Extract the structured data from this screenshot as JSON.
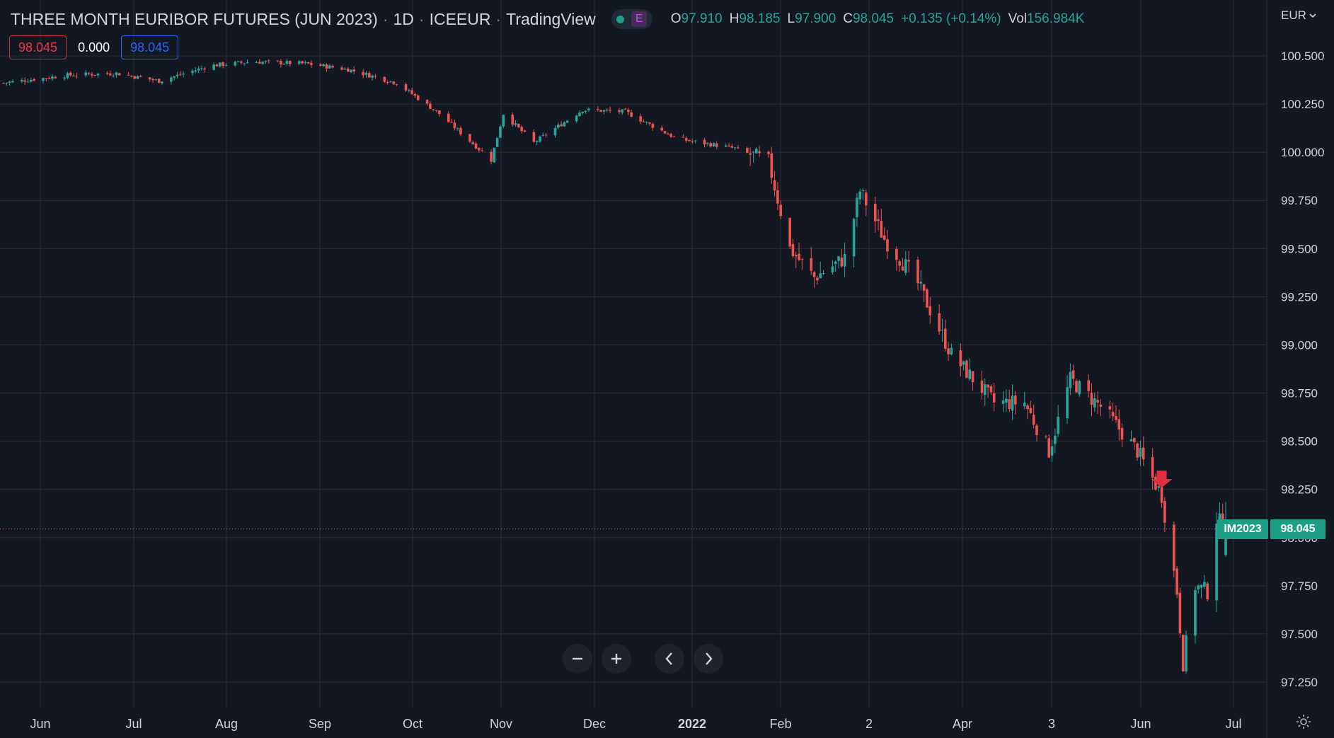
{
  "header": {
    "symbol_title": "THREE MONTH EURIBOR FUTURES (JUN 2023)",
    "interval": "1D",
    "exchange": "ICEEUR",
    "source": "TradingView",
    "sep": "·",
    "status_letter": "E",
    "ohlc": {
      "o_label": "O",
      "o_value": "97.910",
      "h_label": "H",
      "h_value": "98.185",
      "l_label": "L",
      "l_value": "97.900",
      "c_label": "C",
      "c_value": "98.045",
      "change": "+0.135 (+0.14%)",
      "vol_label": "Vol",
      "vol_value": "156.984K"
    }
  },
  "indicator_inputs": {
    "left_value": "98.045",
    "middle_value": "0.000",
    "right_value": "98.045"
  },
  "currency": {
    "label": "EUR"
  },
  "last_price": {
    "symbol": "IM2023",
    "value": "98.045"
  },
  "colors": {
    "background": "#131722",
    "up": "#26a69a",
    "down": "#ef5350",
    "grid": "#2a2e39",
    "marker": "#e03040"
  },
  "icons": {
    "zoom_out": "minus-icon",
    "zoom_in": "plus-icon",
    "scroll_left": "chevron-left-icon",
    "scroll_right": "chevron-right-icon",
    "settings": "gear-icon",
    "currency_caret": "chevron-down-icon"
  },
  "chart_data": {
    "type": "candlestick",
    "title": "THREE MONTH EURIBOR FUTURES (JUN 2023)",
    "xlabel": "",
    "ylabel": "",
    "ylim": [
      97.2,
      100.6
    ],
    "grid": true,
    "y_ticks": [
      "100.500",
      "100.250",
      "100.000",
      "99.750",
      "99.500",
      "99.250",
      "99.000",
      "98.750",
      "98.500",
      "98.250",
      "98.000",
      "97.750",
      "97.500",
      "97.250"
    ],
    "x_ticks": [
      "Jun",
      "Jul",
      "Aug",
      "Sep",
      "Oct",
      "Nov",
      "Dec",
      "2022",
      "Feb",
      "2",
      "Apr",
      "3",
      "Jun",
      "Jul"
    ],
    "last_value": 98.045,
    "marker": {
      "type": "arrow-down",
      "date": "2022-06-09",
      "value": 98.23
    },
    "close_series": [
      {
        "date": "2021-05-25",
        "close": 100.36
      },
      {
        "date": "2021-06-15",
        "close": 100.4
      },
      {
        "date": "2021-07-01",
        "close": 100.41
      },
      {
        "date": "2021-07-15",
        "close": 100.37
      },
      {
        "date": "2021-08-01",
        "close": 100.45
      },
      {
        "date": "2021-08-15",
        "close": 100.47
      },
      {
        "date": "2021-09-01",
        "close": 100.46
      },
      {
        "date": "2021-09-15",
        "close": 100.43
      },
      {
        "date": "2021-10-01",
        "close": 100.36
      },
      {
        "date": "2021-10-15",
        "close": 100.2
      },
      {
        "date": "2021-11-01",
        "close": 99.96
      },
      {
        "date": "2021-11-05",
        "close": 100.2
      },
      {
        "date": "2021-11-15",
        "close": 100.05
      },
      {
        "date": "2021-12-01",
        "close": 100.22
      },
      {
        "date": "2021-12-15",
        "close": 100.21
      },
      {
        "date": "2022-01-01",
        "close": 100.07
      },
      {
        "date": "2022-01-20",
        "close": 100.02
      },
      {
        "date": "2022-01-31",
        "close": 99.95
      },
      {
        "date": "2022-02-07",
        "close": 99.5
      },
      {
        "date": "2022-02-15",
        "close": 99.35
      },
      {
        "date": "2022-02-25",
        "close": 99.45
      },
      {
        "date": "2022-03-02",
        "close": 99.8
      },
      {
        "date": "2022-03-10",
        "close": 99.55
      },
      {
        "date": "2022-03-20",
        "close": 99.35
      },
      {
        "date": "2022-04-01",
        "close": 98.95
      },
      {
        "date": "2022-04-15",
        "close": 98.7
      },
      {
        "date": "2022-04-25",
        "close": 98.7
      },
      {
        "date": "2022-05-03",
        "close": 98.45
      },
      {
        "date": "2022-05-10",
        "close": 98.82
      },
      {
        "date": "2022-05-20",
        "close": 98.68
      },
      {
        "date": "2022-06-01",
        "close": 98.45
      },
      {
        "date": "2022-06-09",
        "close": 98.22
      },
      {
        "date": "2022-06-14",
        "close": 97.72
      },
      {
        "date": "2022-06-16",
        "close": 97.35
      },
      {
        "date": "2022-06-20",
        "close": 97.75
      },
      {
        "date": "2022-06-24",
        "close": 97.72
      },
      {
        "date": "2022-06-27",
        "close": 98.1
      },
      {
        "date": "2022-06-30",
        "close": 98.045
      }
    ]
  }
}
